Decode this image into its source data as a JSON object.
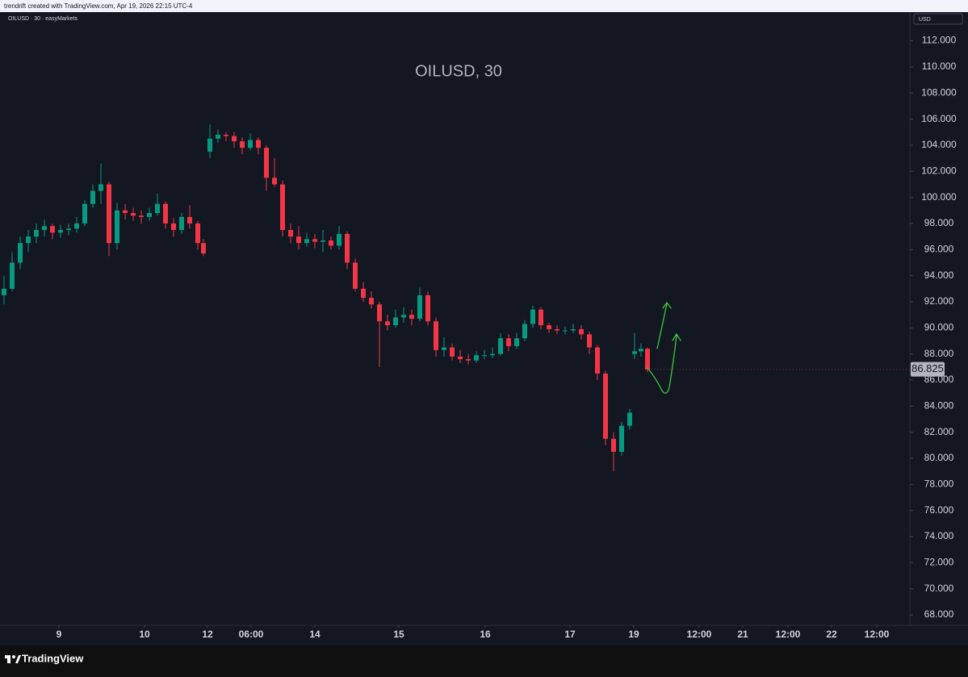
{
  "header": {
    "text": "trendrift created with TradingView.com, Apr 19, 2026 22:15 UTC-4"
  },
  "footer": {
    "brand": "TradingView"
  },
  "chart_data": {
    "type": "candlestick",
    "symbol_info": "OILUSD · 30 · easyMarkets",
    "title": "OILUSD, 30",
    "currency": "USD",
    "up_color": "#089981",
    "down_color": "#f23645",
    "last_price": 86.825,
    "x": [
      0.5,
      1.5,
      2.5,
      3.5,
      4.5,
      5.5,
      6.5,
      7.5,
      8.5,
      9.5,
      10.5,
      11.5,
      12.5,
      13.5,
      14.5,
      15.5,
      16.5,
      17.5,
      18.5,
      19.5,
      20.5,
      21.5,
      22.5,
      23.5,
      24.5,
      25.2,
      26,
      27,
      28,
      29,
      30,
      31,
      32,
      33,
      34,
      35,
      36,
      37,
      38,
      39,
      40,
      41,
      42,
      43,
      44,
      45,
      46,
      47,
      48,
      49,
      50,
      51,
      52,
      53,
      54,
      55,
      56,
      57,
      58,
      59,
      60,
      61,
      62,
      63,
      64,
      65,
      66,
      67,
      68,
      69,
      70,
      71,
      72,
      73,
      74,
      75,
      76,
      77,
      78,
      78.6,
      79.4,
      80.2
    ],
    "open": [
      92.5,
      93,
      95,
      96.5,
      97,
      97.5,
      97.8,
      97.3,
      97.5,
      97.6,
      98,
      99.5,
      100.5,
      101,
      96.5,
      99,
      98.8,
      98.6,
      98.5,
      98.8,
      99.5,
      98,
      97.5,
      98.5,
      98,
      96.5,
      103.5,
      104.5,
      104.8,
      104.7,
      104.3,
      103.8,
      104.4,
      103.8,
      101.5,
      101,
      97.5,
      97,
      96.5,
      96.8,
      96.6,
      96.7,
      96.3,
      97.2,
      95,
      93,
      92.3,
      91.8,
      90.5,
      90.2,
      90.8,
      91,
      90.7,
      92.5,
      90.5,
      88.3,
      88.5,
      87.8,
      87.6,
      87.5,
      87.9,
      87.9,
      88,
      89.2,
      88.6,
      89.2,
      90.3,
      91.4,
      90.2,
      89.9,
      89.8,
      89.8,
      89.9,
      89.5,
      88.5,
      86.5,
      81.5,
      80.5,
      82.5,
      88,
      88.2,
      88.4
    ],
    "high": [
      94,
      95.8,
      97,
      97.5,
      98,
      98.3,
      98,
      97.9,
      98,
      98.5,
      99.8,
      101,
      102.6,
      101.2,
      99.6,
      99.5,
      99.2,
      99,
      99.2,
      100.3,
      99.7,
      98.4,
      98.8,
      99.4,
      98.2,
      96.8,
      105.6,
      105.2,
      105,
      105,
      104.6,
      104.9,
      104.6,
      104,
      103,
      101.3,
      98,
      97.8,
      97.3,
      97.2,
      97.5,
      97,
      97.8,
      97.4,
      95.3,
      93.5,
      92.8,
      92,
      91,
      91.4,
      91.6,
      91.4,
      93.1,
      92.8,
      90.8,
      89.3,
      88.8,
      88.3,
      88,
      88.2,
      88.3,
      88.5,
      89.6,
      89.5,
      89.6,
      90.6,
      91.7,
      91.6,
      90.4,
      90.2,
      90.1,
      90.3,
      90.2,
      89.7,
      88.7,
      86.7,
      82,
      82.8,
      83.8,
      89.6,
      88.8,
      88.5
    ],
    "low": [
      91.8,
      92.8,
      94.5,
      95.8,
      96.5,
      97,
      96.8,
      96.9,
      97.1,
      97.3,
      97.8,
      99.2,
      99.5,
      95.5,
      96,
      98.3,
      98.2,
      98,
      98.2,
      98.6,
      97.6,
      97,
      97.2,
      97.6,
      96,
      95.5,
      103,
      104.2,
      104.3,
      103.8,
      103.3,
      103.6,
      103.3,
      100.5,
      100.8,
      97,
      96.5,
      96,
      96.2,
      96.1,
      95.8,
      96,
      96,
      94.5,
      92.8,
      92,
      91.5,
      87,
      89.8,
      90,
      90.4,
      90.2,
      90.5,
      90.2,
      87.8,
      87.8,
      87.5,
      87.3,
      87.2,
      87.3,
      87.6,
      87.7,
      87.9,
      88.2,
      88.4,
      89,
      90,
      89.9,
      89.6,
      89.5,
      89.5,
      89.6,
      89.1,
      88,
      86,
      81,
      79,
      80.2,
      82.2,
      87.6,
      87.8,
      86.6
    ],
    "close": [
      93,
      95,
      96.5,
      97,
      97.5,
      97.8,
      97.3,
      97.5,
      97.6,
      98,
      99.5,
      100.5,
      101,
      96.5,
      99,
      98.8,
      98.6,
      98.5,
      98.8,
      99.5,
      98,
      97.5,
      98.5,
      98,
      96.5,
      95.7,
      104.5,
      104.8,
      104.7,
      104.3,
      103.8,
      104.4,
      103.8,
      101.5,
      101,
      97.5,
      97,
      96.5,
      96.8,
      96.6,
      96.7,
      96.3,
      97.2,
      95,
      93,
      92.3,
      91.8,
      90.5,
      90.2,
      90.8,
      91,
      90.7,
      92.5,
      90.5,
      88.3,
      88.5,
      87.8,
      87.6,
      87.5,
      87.9,
      87.9,
      88,
      89.2,
      88.6,
      89.2,
      90.3,
      91.4,
      90.2,
      89.9,
      89.8,
      89.8,
      89.9,
      89.5,
      88.5,
      86.5,
      81.5,
      80.5,
      82.5,
      83.5,
      88.2,
      88.4,
      86.8
    ],
    "xlim": [
      0,
      112.7
    ],
    "xticks": [
      {
        "value": 7.3,
        "label": "9"
      },
      {
        "value": 17.9,
        "label": "10"
      },
      {
        "value": 25.7,
        "label": "12"
      },
      {
        "value": 31.1,
        "label": "06:00"
      },
      {
        "value": 39,
        "label": "14"
      },
      {
        "value": 49.4,
        "label": "15"
      },
      {
        "value": 60.1,
        "label": "16"
      },
      {
        "value": 70.6,
        "label": "17"
      },
      {
        "value": 78.5,
        "label": "19"
      },
      {
        "value": 86.6,
        "label": "12:00"
      },
      {
        "value": 92,
        "label": "21"
      },
      {
        "value": 97.6,
        "label": "12:00"
      },
      {
        "value": 103,
        "label": "22"
      },
      {
        "value": 108.6,
        "label": "12:00"
      }
    ],
    "ylim": [
      67.2,
      114.2
    ],
    "yticks": [
      {
        "value": 68,
        "label": "68.000"
      },
      {
        "value": 70,
        "label": "70.000"
      },
      {
        "value": 72,
        "label": "72.000"
      },
      {
        "value": 74,
        "label": "74.000"
      },
      {
        "value": 76,
        "label": "76.000"
      },
      {
        "value": 78,
        "label": "78.000"
      },
      {
        "value": 80,
        "label": "80.000"
      },
      {
        "value": 82,
        "label": "82.000"
      },
      {
        "value": 84,
        "label": "84.000"
      },
      {
        "value": 86,
        "label": "86.000"
      },
      {
        "value": 88,
        "label": "88.000"
      },
      {
        "value": 90,
        "label": "90.000"
      },
      {
        "value": 92,
        "label": "92.000"
      },
      {
        "value": 94,
        "label": "94.000"
      },
      {
        "value": 96,
        "label": "96.000"
      },
      {
        "value": 98,
        "label": "98.000"
      },
      {
        "value": 100,
        "label": "100.000"
      },
      {
        "value": 102,
        "label": "102.000"
      },
      {
        "value": 104,
        "label": "104.000"
      },
      {
        "value": 106,
        "label": "106.000"
      },
      {
        "value": 108,
        "label": "108.000"
      },
      {
        "value": 110,
        "label": "110.000"
      },
      {
        "value": 112,
        "label": "112.000"
      }
    ]
  }
}
